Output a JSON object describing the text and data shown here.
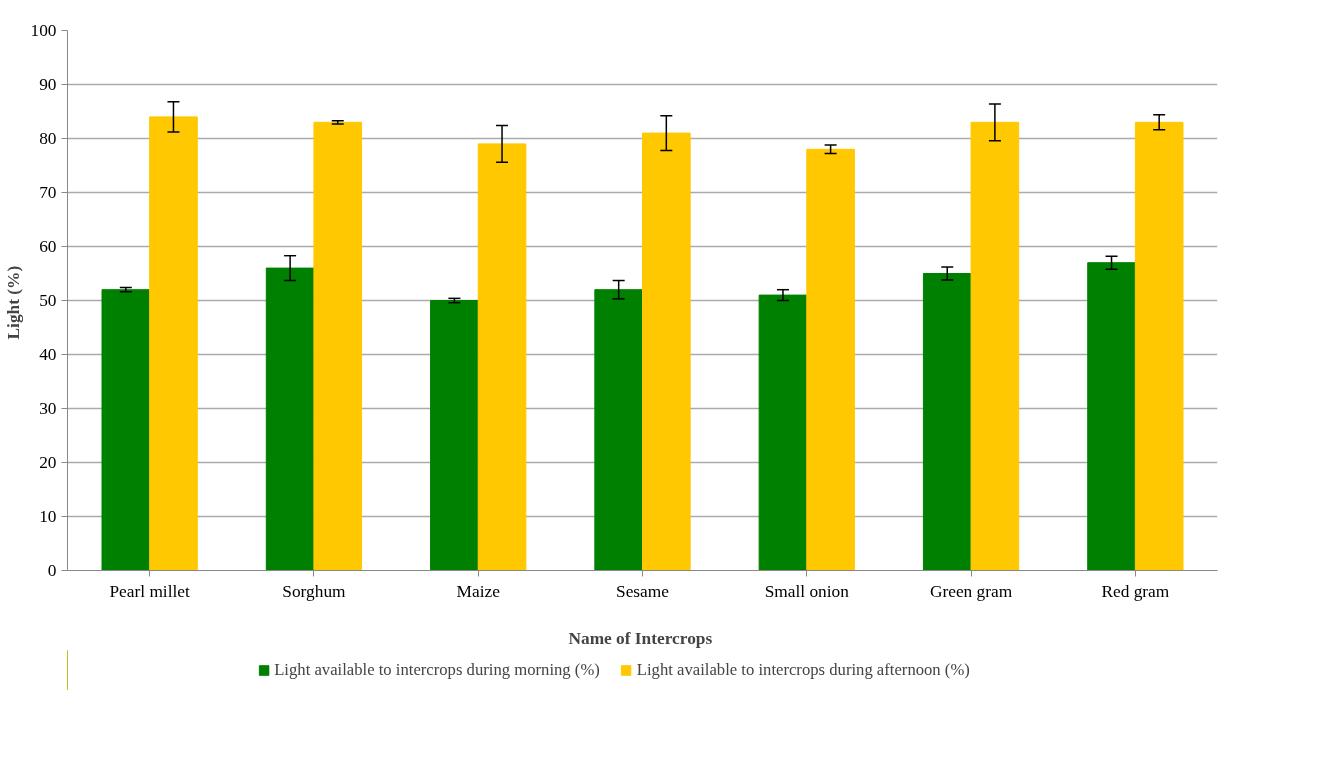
{
  "chart_data": {
    "type": "bar",
    "xlabel": "Name of  Intercrops",
    "ylabel": "Light  (%)",
    "categories": [
      "Pearl millet",
      "Sorghum",
      "Maize",
      "Sesame",
      "Small onion",
      "Green gram",
      "Red gram"
    ],
    "series": [
      {
        "name": "Light available to intercrops during morning (%)",
        "color": "#008000",
        "values": [
          52,
          56,
          50,
          52,
          51,
          55,
          57
        ],
        "errors": [
          0.4,
          2.3,
          0.4,
          1.7,
          1.0,
          1.2,
          1.2
        ]
      },
      {
        "name": "Light available to intercrops during afternoon (%)",
        "color": "#ffc800",
        "values": [
          84,
          83,
          79,
          81,
          78,
          83,
          83
        ],
        "errors": [
          2.8,
          0.3,
          3.4,
          3.2,
          0.8,
          3.4,
          1.4
        ]
      }
    ],
    "ylim": [
      0,
      100
    ],
    "yticks": [
      0,
      10,
      20,
      30,
      40,
      50,
      60,
      70,
      80,
      90,
      100
    ],
    "grid": "y",
    "legend": "bottom"
  }
}
